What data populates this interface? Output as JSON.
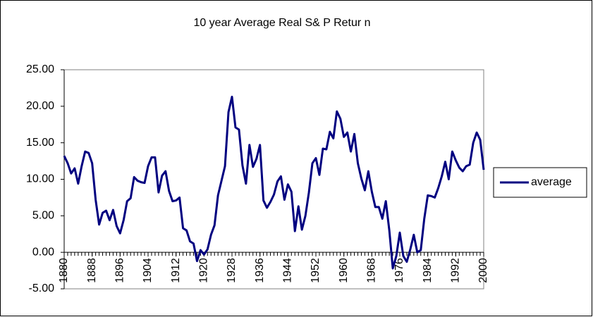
{
  "chart_data": {
    "type": "line",
    "title": "10 year Average Real S& P Retur n",
    "x": [
      1880,
      1881,
      1882,
      1883,
      1884,
      1885,
      1886,
      1887,
      1888,
      1889,
      1890,
      1891,
      1892,
      1893,
      1894,
      1895,
      1896,
      1897,
      1898,
      1899,
      1900,
      1901,
      1902,
      1903,
      1904,
      1905,
      1906,
      1907,
      1908,
      1909,
      1910,
      1911,
      1912,
      1913,
      1914,
      1915,
      1916,
      1917,
      1918,
      1919,
      1920,
      1921,
      1922,
      1923,
      1924,
      1925,
      1926,
      1927,
      1928,
      1929,
      1930,
      1931,
      1932,
      1933,
      1934,
      1935,
      1936,
      1937,
      1938,
      1939,
      1940,
      1941,
      1942,
      1943,
      1944,
      1945,
      1946,
      1947,
      1948,
      1949,
      1950,
      1951,
      1952,
      1953,
      1954,
      1955,
      1956,
      1957,
      1958,
      1959,
      1960,
      1961,
      1962,
      1963,
      1964,
      1965,
      1966,
      1967,
      1968,
      1969,
      1970,
      1971,
      1972,
      1973,
      1974,
      1975,
      1976,
      1977,
      1978,
      1979,
      1980,
      1981,
      1982,
      1983,
      1984,
      1985,
      1986,
      1987,
      1988,
      1989,
      1990,
      1991,
      1992,
      1993,
      1994,
      1995,
      1996,
      1997,
      1998,
      1999,
      2000
    ],
    "series": [
      {
        "name": "average",
        "color": "#000080",
        "values": [
          13.2,
          12.2,
          10.8,
          11.5,
          9.4,
          11.8,
          13.8,
          13.6,
          12.2,
          7.2,
          3.8,
          5.4,
          5.7,
          4.4,
          5.8,
          3.6,
          2.6,
          4.4,
          7.0,
          7.4,
          10.3,
          9.8,
          9.6,
          9.5,
          11.8,
          13.0,
          13.0,
          8.2,
          10.5,
          11.1,
          8.4,
          7.0,
          7.1,
          7.5,
          3.3,
          3.0,
          1.5,
          1.2,
          -1.2,
          0.3,
          -0.3,
          0.4,
          2.4,
          3.7,
          7.8,
          9.8,
          11.8,
          19.2,
          21.3,
          17.1,
          16.8,
          11.9,
          9.4,
          14.7,
          11.7,
          12.8,
          14.7,
          7.1,
          6.1,
          6.9,
          7.9,
          9.7,
          10.4,
          7.2,
          9.3,
          8.3,
          2.9,
          6.3,
          3.1,
          5.0,
          8.2,
          12.2,
          12.9,
          10.6,
          14.2,
          14.1,
          16.5,
          15.6,
          19.3,
          18.3,
          15.8,
          16.4,
          13.8,
          16.2,
          12.2,
          10.1,
          8.5,
          11.1,
          8.3,
          6.2,
          6.2,
          4.6,
          7.0,
          3.0,
          -2.2,
          -0.5,
          2.7,
          -0.5,
          -1.3,
          0.4,
          2.4,
          0.0,
          0.3,
          4.6,
          7.8,
          7.7,
          7.5,
          8.8,
          10.4,
          12.4,
          10.0,
          13.8,
          12.6,
          11.6,
          11.1,
          11.8,
          12.0,
          15.0,
          16.4,
          15.4,
          11.3
        ]
      }
    ],
    "xlim": [
      1880,
      2000
    ],
    "xticks": [
      1880,
      1888,
      1896,
      1904,
      1912,
      1920,
      1928,
      1936,
      1944,
      1952,
      1960,
      1968,
      1976,
      1984,
      1992,
      2000
    ],
    "ylim": [
      -5,
      25
    ],
    "yticks": [
      {
        "value": -5,
        "label": "-5.00"
      },
      {
        "value": 0,
        "label": "0.00"
      },
      {
        "value": 5,
        "label": "5.00"
      },
      {
        "value": 10,
        "label": "10.00"
      },
      {
        "value": 15,
        "label": "15.00"
      },
      {
        "value": 20,
        "label": "20.00"
      },
      {
        "value": 25,
        "label": "25.00"
      }
    ],
    "legend": "right"
  }
}
